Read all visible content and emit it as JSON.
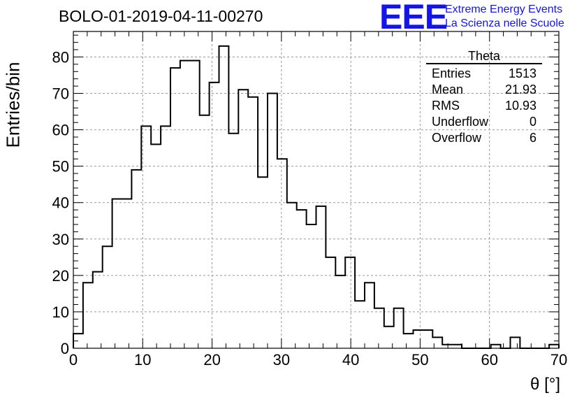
{
  "header": {
    "title": "BOLO-01-2019-04-11-00270",
    "logo_mark": "EEE",
    "logo_line1": "Extreme Energy Events",
    "logo_line2": "La Scienza nelle Scuole"
  },
  "stats_box": {
    "name": "Theta",
    "rows": [
      {
        "label": "Entries",
        "value": "1513"
      },
      {
        "label": "Mean",
        "value": "21.93"
      },
      {
        "label": "RMS",
        "value": "10.93"
      },
      {
        "label": "Underflow",
        "value": "0"
      },
      {
        "label": "Overflow",
        "value": "6"
      }
    ]
  },
  "chart_data": {
    "type": "histogram",
    "xlabel": "θ [°]",
    "ylabel": "Entries/bin",
    "xlim": [
      0,
      70
    ],
    "ylim": [
      0,
      87
    ],
    "bin_width": 1.4,
    "bin_start": 0,
    "xticks": [
      0,
      10,
      20,
      30,
      40,
      50,
      60,
      70
    ],
    "yticks": [
      0,
      10,
      20,
      30,
      40,
      50,
      60,
      70,
      80
    ],
    "grid": true,
    "values": [
      4,
      18,
      21,
      28,
      41,
      41,
      49,
      61,
      56,
      61,
      77,
      79,
      79,
      64,
      73,
      83,
      59,
      71,
      69,
      47,
      70,
      52,
      40,
      38,
      34,
      39,
      25,
      20,
      25,
      13,
      18,
      11,
      6,
      11,
      4,
      5,
      5,
      3,
      1,
      1,
      0,
      0,
      0,
      1,
      0,
      3,
      0,
      0,
      0,
      1
    ]
  }
}
